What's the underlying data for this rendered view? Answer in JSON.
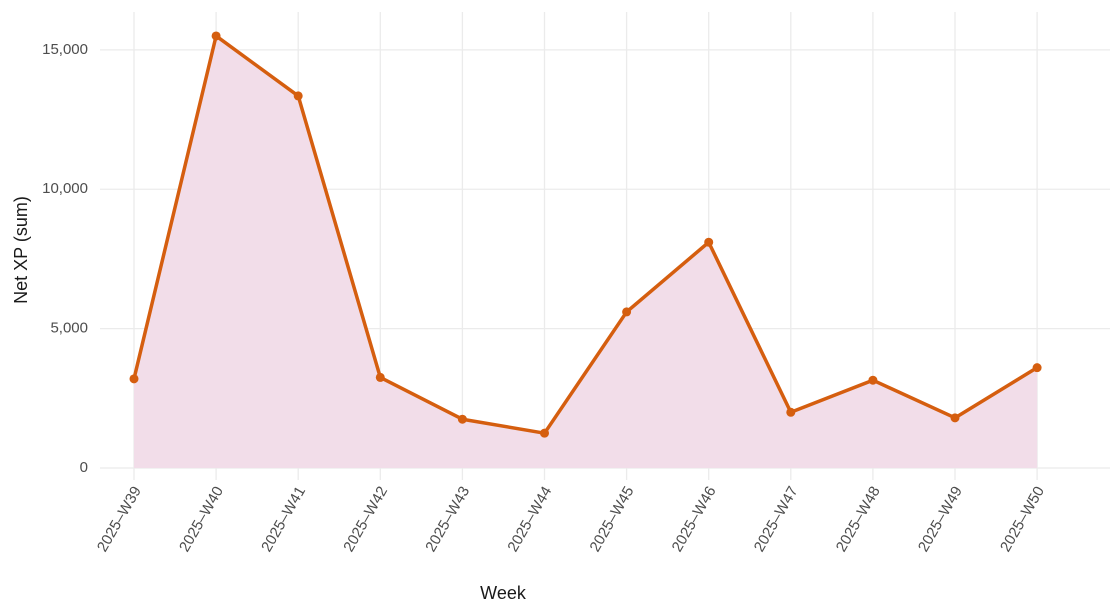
{
  "chart_data": {
    "type": "line",
    "x_label": "Week",
    "y_label": "Net XP (sum)",
    "categories": [
      "2025–W39",
      "2025–W40",
      "2025–W41",
      "2025–W42",
      "2025–W43",
      "2025–W44",
      "2025–W45",
      "2025–W46",
      "2025–W47",
      "2025–W48",
      "2025–W49",
      "2025–W50"
    ],
    "series": [
      {
        "name": "Net XP",
        "color": "#d55e0f",
        "fill": "#f2dde9",
        "values": [
          3200,
          15500,
          13350,
          3250,
          1750,
          1250,
          5600,
          8100,
          2000,
          3150,
          1800,
          3600
        ]
      }
    ],
    "ylim": [
      -430,
      16360
    ],
    "yticks": [
      0,
      {
        "value": 5000,
        "label": "5,000"
      },
      {
        "value": 10000,
        "label": "10,000"
      },
      {
        "value": 15000,
        "label": "15,000"
      }
    ],
    "grid": true
  }
}
